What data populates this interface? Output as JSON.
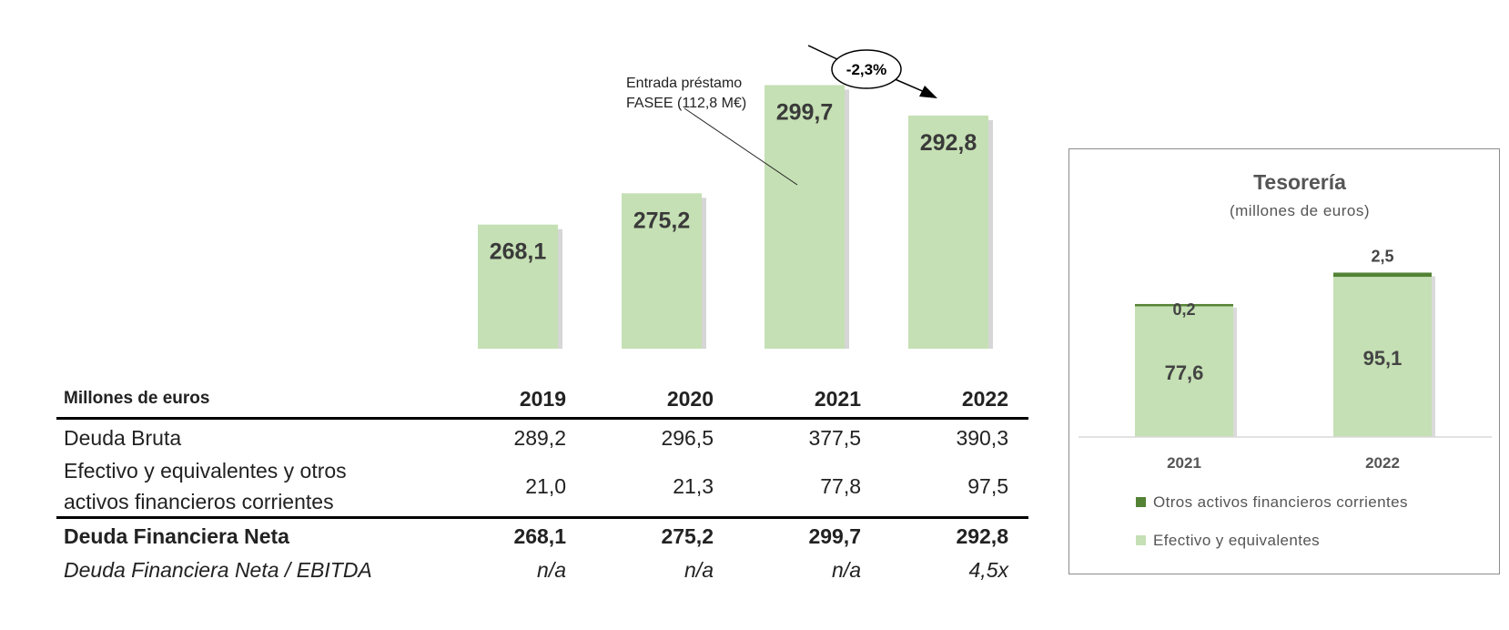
{
  "chart_data": [
    {
      "type": "bar",
      "categories": [
        "2019",
        "2020",
        "2021",
        "2022"
      ],
      "values": [
        268.1,
        275.2,
        299.7,
        292.8
      ],
      "data_labels": [
        "268,1",
        "275,2",
        "299,7",
        "292,8"
      ],
      "bar_color": "#c5e0b4",
      "annotations": {
        "loan_note_line1": "Entrada préstamo",
        "loan_note_line2": "FASEE (112,8 M€)",
        "change": "-2,3%"
      }
    },
    {
      "type": "bar",
      "stacked": true,
      "title": "Tesorería",
      "subtitle": "(millones de euros)",
      "categories": [
        "2021",
        "2022"
      ],
      "series": [
        {
          "name": "Efectivo y equivalentes",
          "values": [
            77.6,
            95.1
          ],
          "labels": [
            "77,6",
            "95,1"
          ],
          "color": "#c5e0b4"
        },
        {
          "name": "Otros activos financieros corrientes",
          "values": [
            0.2,
            2.5
          ],
          "labels": [
            "0,2",
            "2,5"
          ],
          "color": "#548235"
        }
      ],
      "legend_position": "bottom"
    }
  ],
  "table": {
    "header": {
      "label": "Millones de euros",
      "years": [
        "2019",
        "2020",
        "2021",
        "2022"
      ]
    },
    "gross_debt": {
      "label": "Deuda Bruta",
      "values": [
        "289,2",
        "296,5",
        "377,5",
        "390,3"
      ]
    },
    "cash": {
      "label_line1": "Efectivo y equivalentes y otros",
      "label_line2": "activos financieros corrientes",
      "values": [
        "21,0",
        "21,3",
        "77,8",
        "97,5"
      ]
    },
    "net_debt": {
      "label": "Deuda Financiera Neta",
      "values": [
        "268,1",
        "275,2",
        "299,7",
        "292,8"
      ]
    },
    "ratio": {
      "label": "Deuda Financiera Neta / EBITDA",
      "values": [
        "n/a",
        "n/a",
        "n/a",
        "4,5x"
      ]
    }
  }
}
